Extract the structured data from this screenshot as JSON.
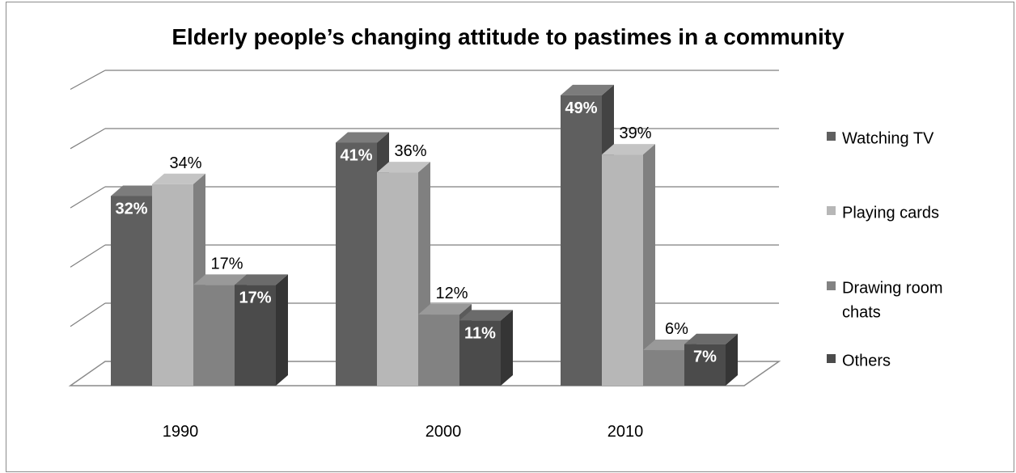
{
  "chart_data": {
    "type": "bar",
    "title": "Elderly people’s changing attitude to pastimes in a community",
    "categories": [
      "1990",
      "2000",
      "2010"
    ],
    "series": [
      {
        "name": "Watching TV",
        "values": [
          32,
          41,
          49
        ],
        "labels": [
          "32%",
          "41%",
          "49%"
        ],
        "color": "#5f5f5f",
        "label_color": "#ffffff",
        "label_bold": true
      },
      {
        "name": "Playing cards",
        "values": [
          34,
          36,
          39
        ],
        "labels": [
          "34%",
          "36%",
          "39%"
        ],
        "color": "#b7b7b7",
        "label_color": "#000000",
        "label_bold": false
      },
      {
        "name": "Drawing room chats",
        "legend_lines": [
          "Drawing room",
          "chats"
        ],
        "values": [
          17,
          12,
          6
        ],
        "labels": [
          "17%",
          "12%",
          "6%"
        ],
        "color": "#828282",
        "label_color": "#000000",
        "label_bold": false
      },
      {
        "name": "Others",
        "values": [
          17,
          11,
          7
        ],
        "labels": [
          "17%",
          "11%",
          "7%"
        ],
        "color": "#4b4b4b",
        "label_color": "#ffffff",
        "label_bold": true
      }
    ],
    "ylim": [
      0,
      50
    ],
    "grid": true,
    "legend_position": "right",
    "style": "3d-clustered-column"
  }
}
